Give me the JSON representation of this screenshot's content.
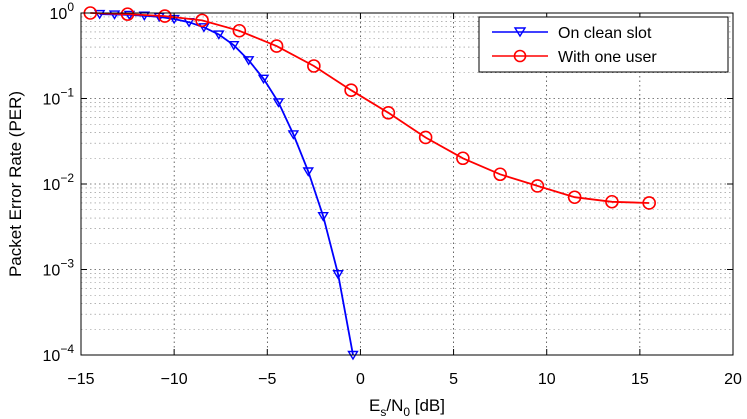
{
  "chart_data": {
    "type": "line",
    "title": "",
    "xlabel": "E_s/N_0 [dB]",
    "xlabel_parts": {
      "main": "E",
      "sub1": "s",
      "mid": "/N",
      "sub2": "0",
      "tail": " [dB]"
    },
    "ylabel": "Packet Error Rate (PER)",
    "xlim": [
      -15,
      20
    ],
    "ylim": [
      0.0001,
      1
    ],
    "yscale": "log",
    "grid": true,
    "legend_position": "upper right",
    "x_ticks": [
      "−15",
      "−10",
      "−5",
      "0",
      "5",
      "10",
      "15",
      "20"
    ],
    "x_tick_values": [
      -15,
      -10,
      -5,
      0,
      5,
      10,
      15,
      20
    ],
    "y_ticks": [
      {
        "base": "10",
        "exp": "0",
        "value": 1
      },
      {
        "base": "10",
        "exp": "−1",
        "value": 0.1
      },
      {
        "base": "10",
        "exp": "−2",
        "value": 0.01
      },
      {
        "base": "10",
        "exp": "−3",
        "value": 0.001
      },
      {
        "base": "10",
        "exp": "−4",
        "value": 0.0001
      }
    ],
    "series": [
      {
        "name": "On clean slot",
        "color": "#0000ff",
        "marker": "triangle-down",
        "x": [
          -14.0,
          -13.2,
          -12.4,
          -11.6,
          -10.8,
          -10.0,
          -9.2,
          -8.4,
          -7.6,
          -6.8,
          -6.0,
          -5.2,
          -4.4,
          -3.6,
          -2.8,
          -2.0,
          -1.2,
          -0.4
        ],
        "values": [
          0.97,
          0.96,
          0.95,
          0.93,
          0.9,
          0.85,
          0.78,
          0.68,
          0.56,
          0.42,
          0.28,
          0.17,
          0.09,
          0.038,
          0.014,
          0.0042,
          0.00088,
          0.0001
        ]
      },
      {
        "name": "With one user",
        "color": "#ff0000",
        "marker": "circle",
        "x": [
          -14.5,
          -12.5,
          -10.5,
          -8.5,
          -6.5,
          -4.5,
          -2.5,
          -0.5,
          1.5,
          3.5,
          5.5,
          7.5,
          9.5,
          11.5,
          13.5,
          15.5
        ],
        "values": [
          1.0,
          0.97,
          0.92,
          0.82,
          0.62,
          0.41,
          0.24,
          0.125,
          0.068,
          0.035,
          0.02,
          0.013,
          0.0095,
          0.007,
          0.0062,
          0.006
        ]
      }
    ]
  },
  "legend": {
    "items": [
      {
        "label": "On clean slot"
      },
      {
        "label": "With one user"
      }
    ]
  }
}
